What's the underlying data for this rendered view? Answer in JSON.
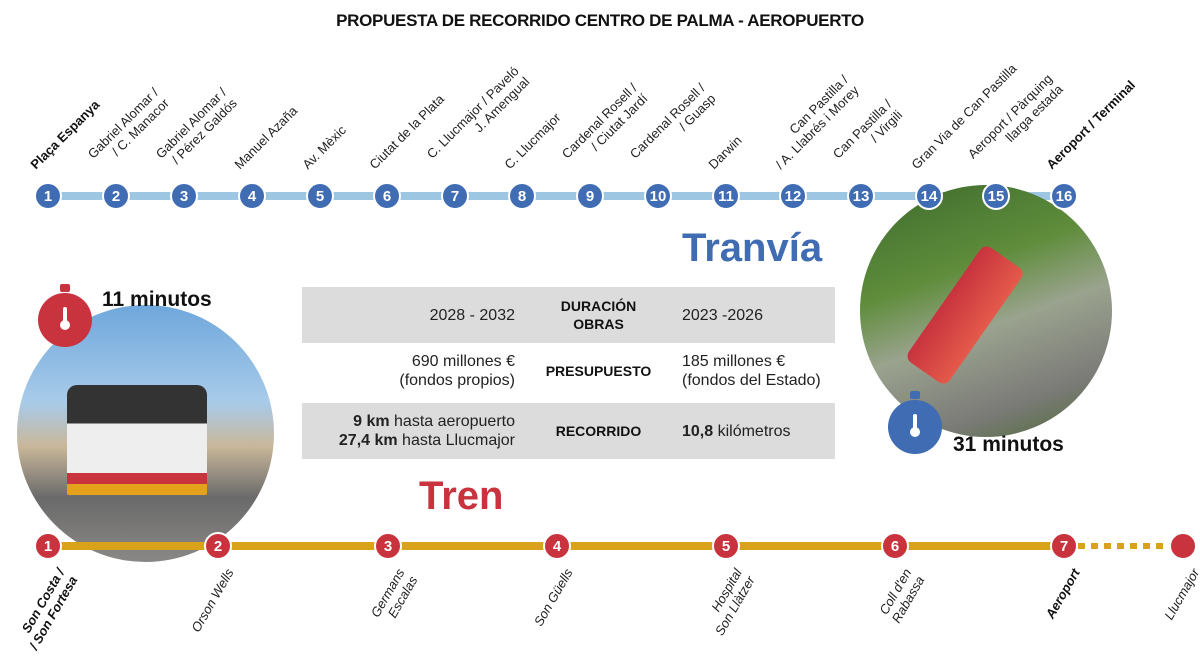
{
  "title": "PROPUESTA DE RECORRIDO CENTRO DE PALMA - AEROPUERTO",
  "colors": {
    "tram": "#3f6cb2",
    "tram_line": "#9cc6e2",
    "train": "#c8333e",
    "train_line": "#d9a21b"
  },
  "tram": {
    "name": "Tranvía",
    "duration": "31 minutos",
    "duration_icon": "stopwatch-icon",
    "stops": [
      {
        "n": "1",
        "label": "Plaça Espanya",
        "bold": true
      },
      {
        "n": "2",
        "label": "Gabriel Alomar /\n/ C. Manacor"
      },
      {
        "n": "3",
        "label": "Gabriel Alomar /\n/ Pérez Galdós"
      },
      {
        "n": "4",
        "label": "Manuel Azaña"
      },
      {
        "n": "5",
        "label": "Av. Mèxic"
      },
      {
        "n": "6",
        "label": "Ciutat de la Plata"
      },
      {
        "n": "7",
        "label": "C. Llucmajor / Paveló\nJ. Amengual"
      },
      {
        "n": "8",
        "label": "C. Llucmajor"
      },
      {
        "n": "9",
        "label": "Cardenal Rosell /\n/ Ciutat Jardí"
      },
      {
        "n": "10",
        "label": "Cardenal Rosell /\n/ Guasp"
      },
      {
        "n": "11",
        "label": "Darwin"
      },
      {
        "n": "12",
        "label": "Can Pastilla /\n/ A. Llabrés i Morey"
      },
      {
        "n": "13",
        "label": "Can Pastilla /\n/ Virgili"
      },
      {
        "n": "14",
        "label": "Gran Via de Can Pastilla"
      },
      {
        "n": "15",
        "label": "Aeroport / Pàrquing\nllarga estada"
      },
      {
        "n": "16",
        "label": "Aeroport / Terminal",
        "bold": true
      }
    ]
  },
  "train": {
    "name": "Tren",
    "duration": "11 minutos",
    "duration_icon": "stopwatch-icon",
    "stops": [
      {
        "n": "1",
        "label": "Son Costa /\n/ Son Fortesa",
        "bold": true
      },
      {
        "n": "2",
        "label": "Orson Wells"
      },
      {
        "n": "3",
        "label": "Germans\nEscalas"
      },
      {
        "n": "4",
        "label": "Son Güells"
      },
      {
        "n": "5",
        "label": "Hospital\nSon Llàtzer"
      },
      {
        "n": "6",
        "label": "Coll d'en\nRabassa"
      },
      {
        "n": "7",
        "label": "Aeroport",
        "bold": true
      },
      {
        "n": "",
        "label": "Llucmajor"
      }
    ]
  },
  "comparison": [
    {
      "train": "2028 - 2032",
      "label": "DURACIÓN\nOBRAS",
      "tram": "2023 -2026"
    },
    {
      "train": "690 millones €\n(fondos propios)",
      "label": "PRESUPUESTO",
      "tram": "185 millones €\n(fondos del Estado)"
    },
    {
      "train_bold1": "9 km",
      "train_rest1": " hasta aeropuerto",
      "train_bold2": "27,4 km",
      "train_rest2": " hasta Llucmajor",
      "label": "RECORRIDO",
      "tram_bold": "10,8",
      "tram_rest": " kilómetros"
    }
  ]
}
